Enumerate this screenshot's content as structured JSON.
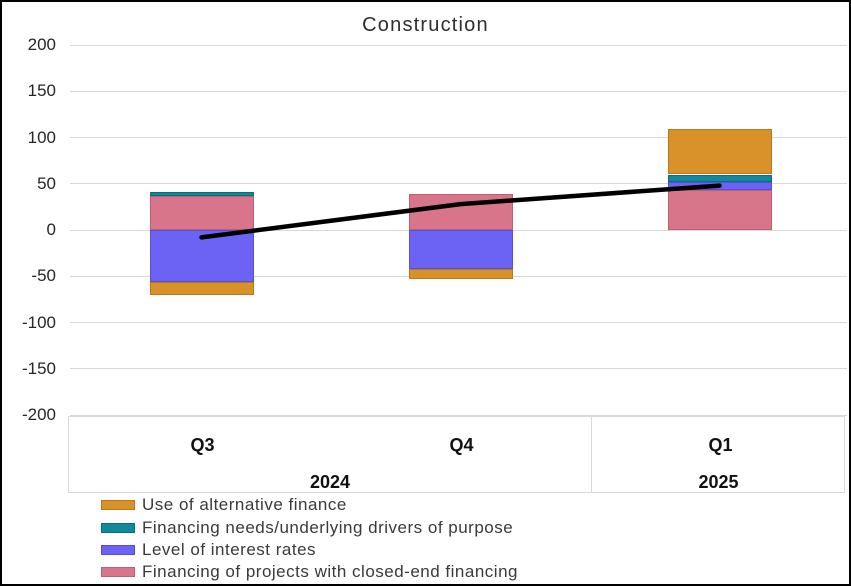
{
  "chart_data": {
    "type": "bar",
    "subtype": "stacked-bar-with-line-overlay",
    "title": "Construction",
    "categories": [
      "Q3",
      "Q4",
      "Q1"
    ],
    "category_groups": [
      {
        "label": "2024",
        "from": 0,
        "to": 1
      },
      {
        "label": "2025",
        "from": 2,
        "to": 2
      }
    ],
    "y_ticks": [
      200,
      150,
      100,
      50,
      0,
      -50,
      -100,
      -150,
      -200
    ],
    "ylim": [
      -200,
      200
    ],
    "grid": true,
    "legend_position": "bottom-left",
    "series": [
      {
        "name": "Use of alternative finance",
        "color": "#D9922A",
        "border": "#B7791C",
        "values": [
          -14,
          -11,
          49
        ]
      },
      {
        "name": "Financing needs/underlying drivers of purpose",
        "color": "#12899B",
        "border": "#0B6E7D",
        "values": [
          4,
          0,
          8
        ]
      },
      {
        "name": "Level of interest rates",
        "color": "#6C63F5",
        "border": "#564FD2",
        "values": [
          -56,
          -42,
          9
        ]
      },
      {
        "name": "Financing of projects with closed-end financing",
        "color": "#D9758B",
        "border": "#BC5F74",
        "values": [
          37,
          39,
          43
        ]
      }
    ],
    "stack_order_from_axis": [
      "Financing of projects with closed-end financing",
      "Level of interest rates",
      "Financing needs/underlying drivers of purpose",
      "Use of alternative finance"
    ],
    "line_overlay": {
      "color": "#000000",
      "values": [
        -8,
        28,
        48
      ]
    }
  },
  "colors": {
    "background": "#FFFFFF",
    "frame_border": "#000000",
    "gridline": "#D9D9D9",
    "axis_text": "#262626",
    "title_text": "#2E2E2E",
    "legend_text": "#3A3A3A"
  }
}
